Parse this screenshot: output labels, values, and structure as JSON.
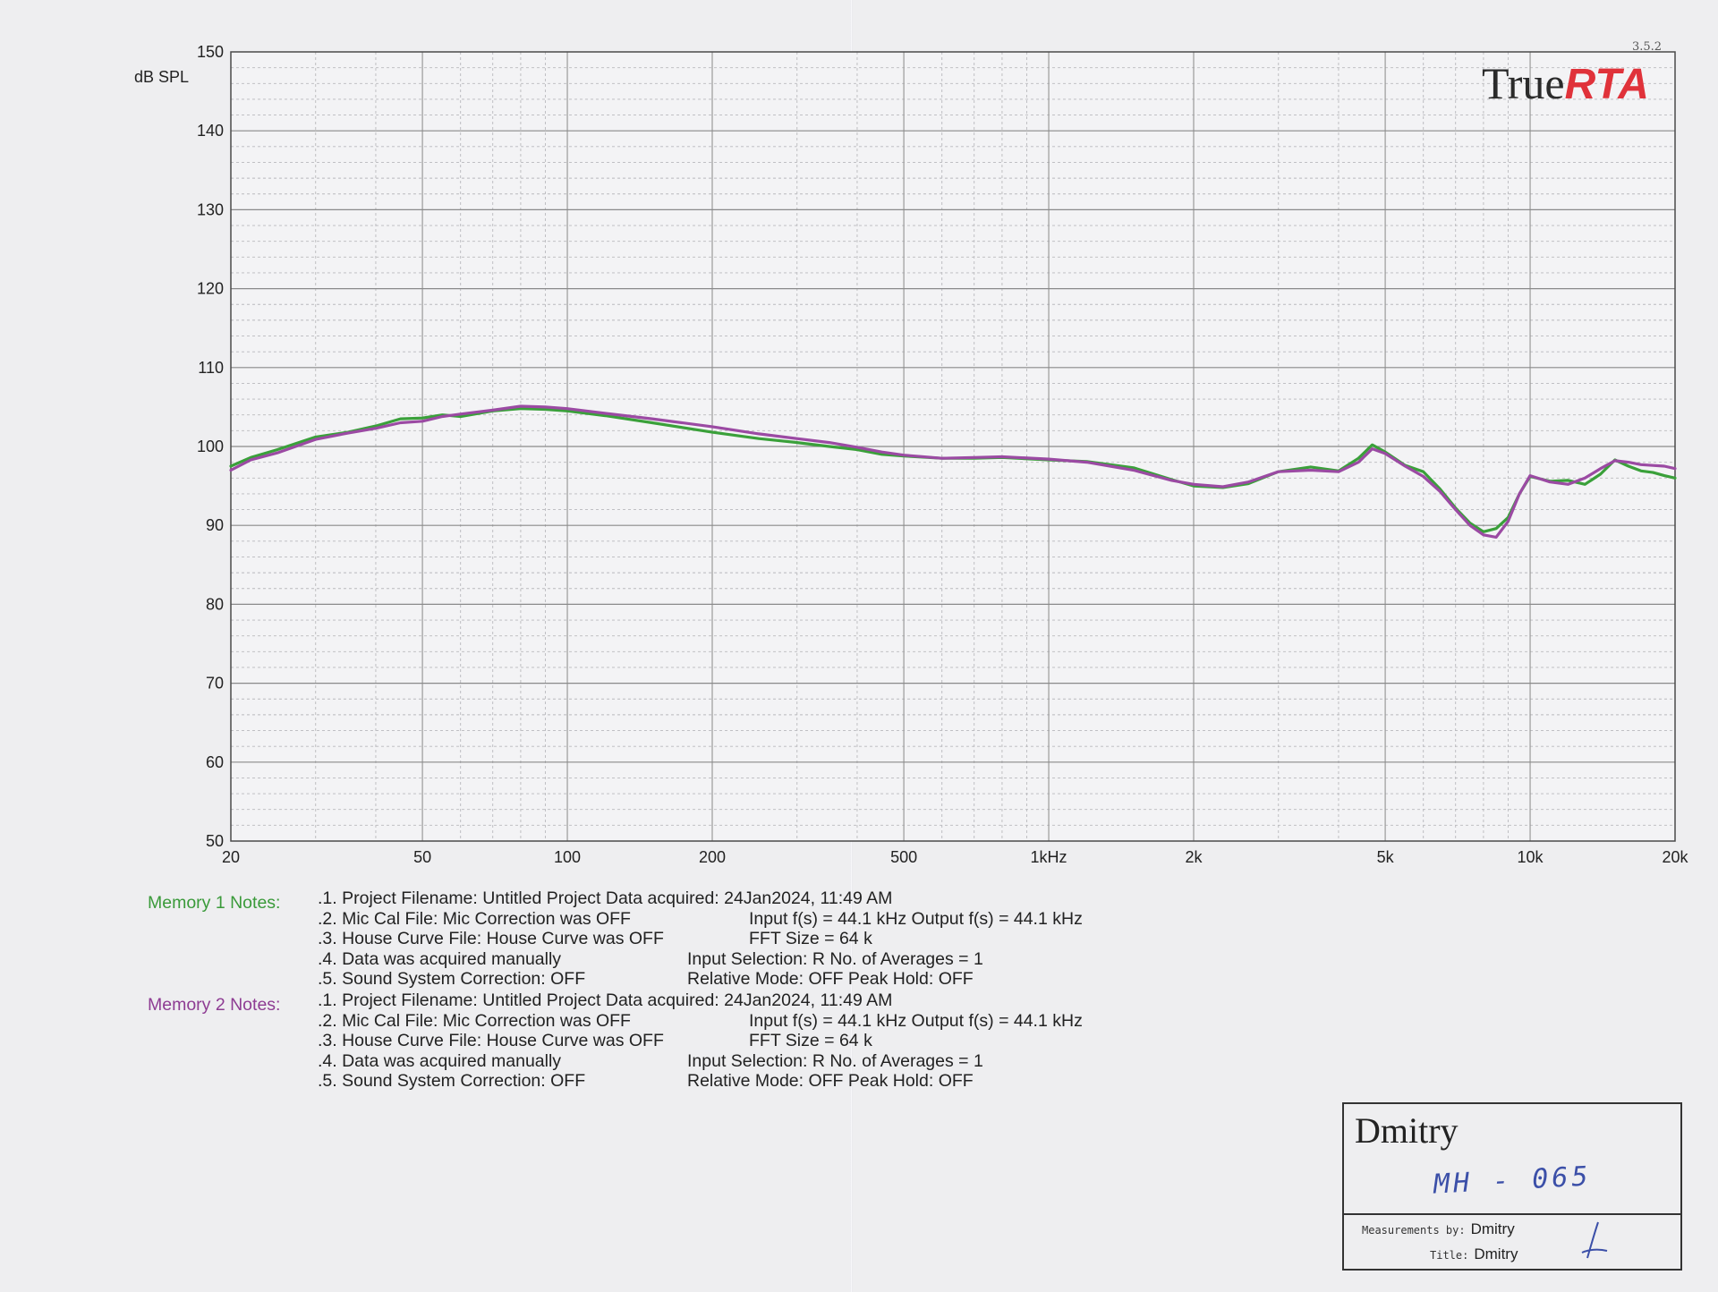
{
  "chart_data": {
    "type": "line",
    "title": "",
    "xlabel": "",
    "ylabel": "dB SPL",
    "x_scale": "log",
    "xlim": [
      20,
      20000
    ],
    "ylim": [
      50,
      150
    ],
    "grid": true,
    "y_ticks": [
      "150",
      "140",
      "130",
      "120",
      "110",
      "100",
      "90",
      "80",
      "70",
      "60",
      "50"
    ],
    "x_ticks": [
      {
        "value": 20,
        "label": "20"
      },
      {
        "value": 50,
        "label": "50"
      },
      {
        "value": 100,
        "label": "100"
      },
      {
        "value": 200,
        "label": "200"
      },
      {
        "value": 500,
        "label": "500"
      },
      {
        "value": 1000,
        "label": "1kHz"
      },
      {
        "value": 2000,
        "label": "2k"
      },
      {
        "value": 5000,
        "label": "5k"
      },
      {
        "value": 10000,
        "label": "10k"
      },
      {
        "value": 20000,
        "label": "20k"
      }
    ],
    "legend": "none",
    "series": [
      {
        "color": "#3aa03a",
        "points": [
          [
            20,
            97.5
          ],
          [
            22,
            98.6
          ],
          [
            25,
            99.6
          ],
          [
            30,
            101.2
          ],
          [
            35,
            101.8
          ],
          [
            40,
            102.6
          ],
          [
            45,
            103.5
          ],
          [
            50,
            103.6
          ],
          [
            55,
            104.0
          ],
          [
            60,
            103.8
          ],
          [
            70,
            104.5
          ],
          [
            80,
            104.8
          ],
          [
            90,
            104.7
          ],
          [
            100,
            104.5
          ],
          [
            120,
            103.9
          ],
          [
            150,
            103.0
          ],
          [
            200,
            101.8
          ],
          [
            250,
            101.0
          ],
          [
            300,
            100.5
          ],
          [
            350,
            100.0
          ],
          [
            400,
            99.6
          ],
          [
            450,
            99.0
          ],
          [
            500,
            98.8
          ],
          [
            600,
            98.5
          ],
          [
            700,
            98.5
          ],
          [
            800,
            98.6
          ],
          [
            1000,
            98.3
          ],
          [
            1200,
            98.1
          ],
          [
            1500,
            97.3
          ],
          [
            1800,
            95.8
          ],
          [
            2000,
            95.0
          ],
          [
            2300,
            94.8
          ],
          [
            2600,
            95.3
          ],
          [
            3000,
            96.8
          ],
          [
            3500,
            97.4
          ],
          [
            4000,
            96.9
          ],
          [
            4400,
            98.5
          ],
          [
            4700,
            100.2
          ],
          [
            5000,
            99.3
          ],
          [
            5500,
            97.6
          ],
          [
            6000,
            96.8
          ],
          [
            6500,
            94.6
          ],
          [
            7000,
            92.2
          ],
          [
            7500,
            90.3
          ],
          [
            8000,
            89.2
          ],
          [
            8500,
            89.6
          ],
          [
            9000,
            91.0
          ],
          [
            9500,
            94.0
          ],
          [
            10000,
            96.2
          ],
          [
            11000,
            95.6
          ],
          [
            12000,
            95.7
          ],
          [
            13000,
            95.2
          ],
          [
            14000,
            96.5
          ],
          [
            15000,
            98.3
          ],
          [
            16000,
            97.5
          ],
          [
            17000,
            96.9
          ],
          [
            18000,
            96.7
          ],
          [
            19000,
            96.3
          ],
          [
            20000,
            96.0
          ]
        ]
      },
      {
        "color": "#9b4aa3",
        "points": [
          [
            20,
            97.0
          ],
          [
            22,
            98.3
          ],
          [
            25,
            99.2
          ],
          [
            30,
            100.9
          ],
          [
            35,
            101.7
          ],
          [
            40,
            102.3
          ],
          [
            45,
            103.0
          ],
          [
            50,
            103.2
          ],
          [
            55,
            103.8
          ],
          [
            60,
            104.1
          ],
          [
            70,
            104.6
          ],
          [
            80,
            105.1
          ],
          [
            90,
            105.0
          ],
          [
            100,
            104.8
          ],
          [
            120,
            104.2
          ],
          [
            150,
            103.5
          ],
          [
            200,
            102.5
          ],
          [
            250,
            101.6
          ],
          [
            300,
            101.0
          ],
          [
            350,
            100.5
          ],
          [
            400,
            99.9
          ],
          [
            450,
            99.3
          ],
          [
            500,
            98.9
          ],
          [
            600,
            98.5
          ],
          [
            700,
            98.6
          ],
          [
            800,
            98.7
          ],
          [
            1000,
            98.4
          ],
          [
            1200,
            98.0
          ],
          [
            1500,
            97.0
          ],
          [
            1800,
            95.7
          ],
          [
            2000,
            95.2
          ],
          [
            2300,
            94.9
          ],
          [
            2600,
            95.5
          ],
          [
            3000,
            96.8
          ],
          [
            3500,
            97.0
          ],
          [
            4000,
            96.8
          ],
          [
            4400,
            98.0
          ],
          [
            4700,
            99.7
          ],
          [
            5000,
            99.1
          ],
          [
            5500,
            97.5
          ],
          [
            6000,
            96.2
          ],
          [
            6500,
            94.3
          ],
          [
            7000,
            92.0
          ],
          [
            7500,
            90.0
          ],
          [
            8000,
            88.8
          ],
          [
            8500,
            88.5
          ],
          [
            9000,
            90.5
          ],
          [
            9500,
            94.0
          ],
          [
            10000,
            96.3
          ],
          [
            11000,
            95.5
          ],
          [
            12000,
            95.2
          ],
          [
            13000,
            96.0
          ],
          [
            14000,
            97.2
          ],
          [
            15000,
            98.2
          ],
          [
            16000,
            98.0
          ],
          [
            17000,
            97.7
          ],
          [
            18000,
            97.6
          ],
          [
            19000,
            97.5
          ],
          [
            20000,
            97.2
          ]
        ]
      }
    ]
  },
  "brand": {
    "name_plain": "True",
    "name_accent": "RTA",
    "version": "3.5.2"
  },
  "memory_notes": [
    {
      "heading": "Memory 1 Notes:",
      "heading_color": "#3a9a3a",
      "lines": [
        ".1. Project Filename: Untitled Project  Data acquired: 24Jan2024, 11:49 AM",
        ".2. Mic Cal File: Mic Correction was OFF",
        "Input f(s) = 44.1 kHz    Output f(s) = 44.1 kHz",
        ".3. House Curve File: House Curve was OFF",
        "FFT Size = 64 k",
        ".4. Data was acquired manually",
        "Input Selection: R      No. of Averages = 1",
        ".5. Sound System Correction: OFF",
        "Relative Mode:   OFF    Peak Hold: OFF"
      ]
    },
    {
      "heading": "Memory 2 Notes:",
      "heading_color": "#8e3c93",
      "lines": [
        ".1. Project Filename: Untitled Project  Data acquired: 24Jan2024, 11:49 AM",
        ".2. Mic Cal File: Mic Correction was OFF",
        "Input f(s) = 44.1 kHz    Output f(s) = 44.1 kHz",
        ".3. House Curve File: House Curve was OFF",
        "FFT Size = 64 k",
        ".4. Data was acquired manually",
        "Input Selection: R      No. of Averages = 1",
        ".5. Sound System Correction: OFF",
        "Relative Mode:   OFF    Peak Hold: OFF"
      ]
    }
  ],
  "signature_box": {
    "name": "Dmitry",
    "handwritten": "MH - 065",
    "measured_by_label": "Measurements by:",
    "measured_by_value": "Dmitry",
    "title_label": "Title:",
    "title_value": "Dmitry"
  }
}
